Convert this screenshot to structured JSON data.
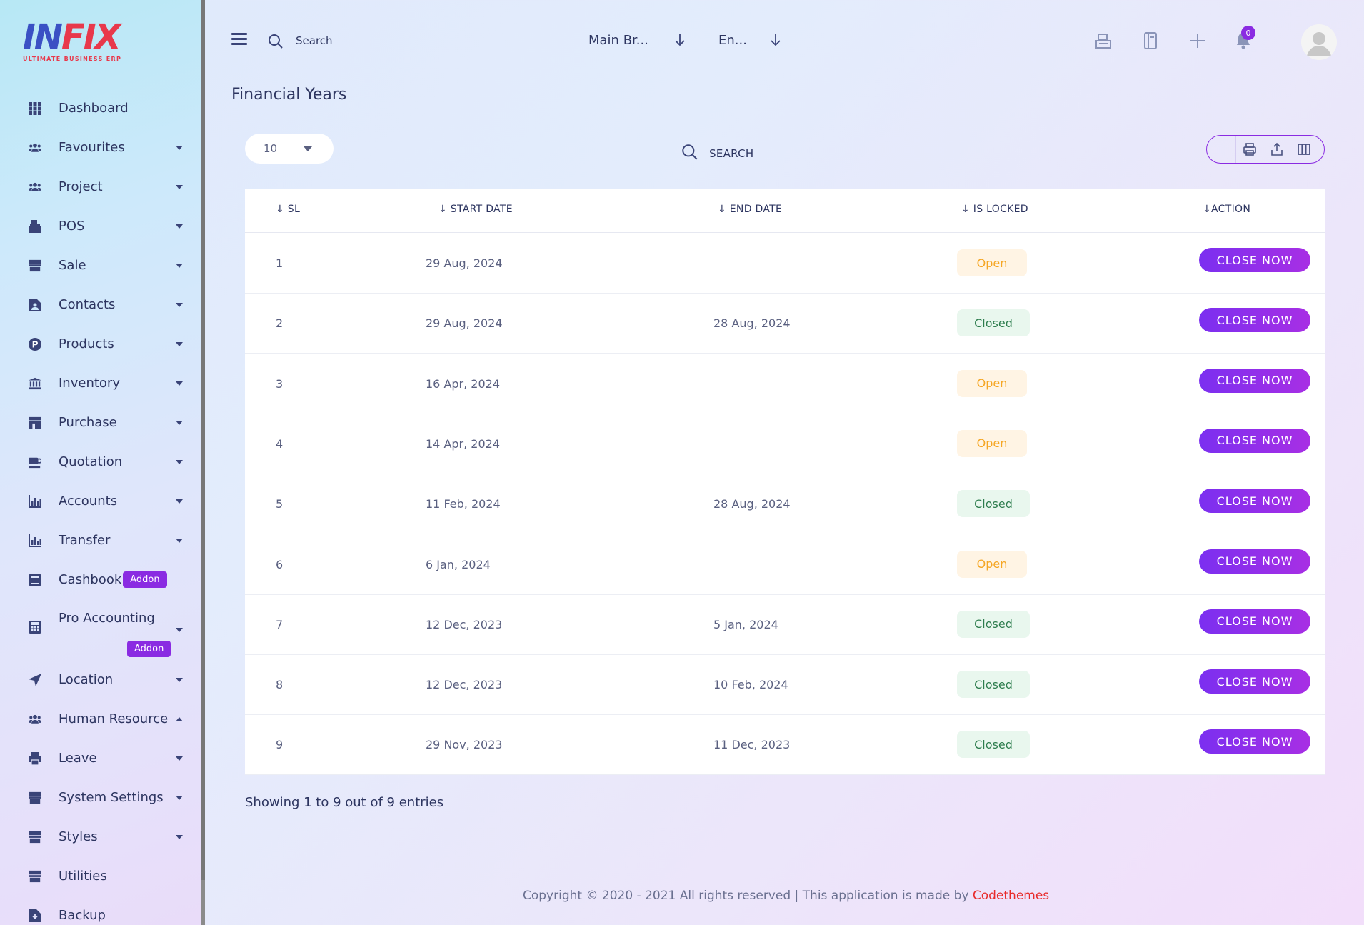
{
  "brand": {
    "logo_a": "IN",
    "logo_b": "FIX",
    "tagline": "ULTIMATE BUSINESS ERP"
  },
  "sidebar": {
    "items": [
      {
        "label": "Dashboard",
        "icon": "grid-icon",
        "caret": ""
      },
      {
        "label": "Favourites",
        "icon": "users-icon",
        "caret": "down"
      },
      {
        "label": "Project",
        "icon": "users-icon",
        "caret": "down"
      },
      {
        "label": "POS",
        "icon": "cash-register-icon",
        "caret": "down"
      },
      {
        "label": "Sale",
        "icon": "store-icon",
        "caret": "down"
      },
      {
        "label": "Contacts",
        "icon": "contact-file-icon",
        "caret": "down"
      },
      {
        "label": "Products",
        "icon": "product-p-icon",
        "caret": "down"
      },
      {
        "label": "Inventory",
        "icon": "bank-icon",
        "caret": "down"
      },
      {
        "label": "Purchase",
        "icon": "shop-icon",
        "caret": "down"
      },
      {
        "label": "Quotation",
        "icon": "cup-icon",
        "caret": "down"
      },
      {
        "label": "Accounts",
        "icon": "bar-chart-icon",
        "caret": "down"
      },
      {
        "label": "Transfer",
        "icon": "bar-chart-icon",
        "caret": "down"
      },
      {
        "label": "Cashbook",
        "icon": "book-icon",
        "caret": "",
        "badge": "Addon"
      },
      {
        "label": "Pro Accounting",
        "icon": "calculator-icon",
        "caret": "down",
        "badge": "Addon"
      },
      {
        "label": "Location",
        "icon": "location-arrow-icon",
        "caret": "down"
      },
      {
        "label": "Human Resource",
        "icon": "users-icon",
        "caret": "up"
      },
      {
        "label": "Leave",
        "icon": "printer-icon",
        "caret": "down"
      },
      {
        "label": "System Settings",
        "icon": "store-icon",
        "caret": "down"
      },
      {
        "label": "Styles",
        "icon": "store-icon",
        "caret": "down"
      },
      {
        "label": "Utilities",
        "icon": "store-icon",
        "caret": ""
      },
      {
        "label": "Backup",
        "icon": "download-file-icon",
        "caret": ""
      }
    ]
  },
  "topbar": {
    "search_placeholder": "Search",
    "branch": "Main Br...",
    "language": "En...",
    "notification_count": "0"
  },
  "page": {
    "title": "Financial Years"
  },
  "table_controls": {
    "page_size": "10",
    "search_placeholder": "SEARCH"
  },
  "table": {
    "columns": [
      "SL",
      "START DATE",
      "END DATE",
      "IS LOCKED",
      "ACTION"
    ],
    "rows": [
      {
        "sl": "1",
        "start": "29 Aug, 2024",
        "end": "",
        "status": "Open",
        "action": "CLOSE NOW"
      },
      {
        "sl": "2",
        "start": "29 Aug, 2024",
        "end": "28 Aug, 2024",
        "status": "Closed",
        "action": "CLOSE NOW"
      },
      {
        "sl": "3",
        "start": "16 Apr, 2024",
        "end": "",
        "status": "Open",
        "action": "CLOSE NOW"
      },
      {
        "sl": "4",
        "start": "14 Apr, 2024",
        "end": "",
        "status": "Open",
        "action": "CLOSE NOW"
      },
      {
        "sl": "5",
        "start": "11 Feb, 2024",
        "end": "28 Aug, 2024",
        "status": "Closed",
        "action": "CLOSE NOW"
      },
      {
        "sl": "6",
        "start": "6 Jan, 2024",
        "end": "",
        "status": "Open",
        "action": "CLOSE NOW"
      },
      {
        "sl": "7",
        "start": "12 Dec, 2023",
        "end": "5 Jan, 2024",
        "status": "Closed",
        "action": "CLOSE NOW"
      },
      {
        "sl": "8",
        "start": "12 Dec, 2023",
        "end": "10 Feb, 2024",
        "status": "Closed",
        "action": "CLOSE NOW"
      },
      {
        "sl": "9",
        "start": "29 Nov, 2023",
        "end": "11 Dec, 2023",
        "status": "Closed",
        "action": "CLOSE NOW"
      }
    ]
  },
  "summary": {
    "showing": "Showing 1 to 9 out of 9 entries"
  },
  "footer": {
    "text": "Copyright © 2020 - 2021 All rights reserved | This application is made by ",
    "brand": "Codethemes"
  },
  "colors": {
    "accent": "#8a2be2",
    "open": "#f5a623",
    "closed": "#2e7d4e",
    "brand_red": "#e82b2b"
  }
}
